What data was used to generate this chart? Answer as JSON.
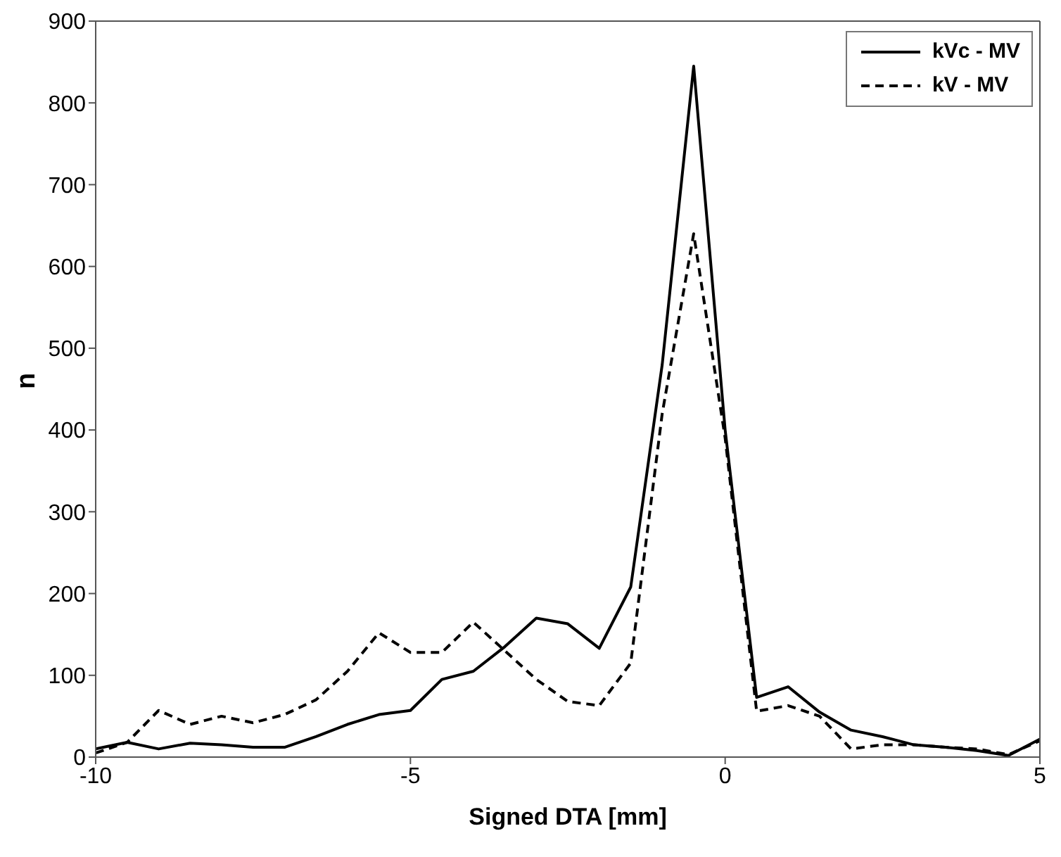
{
  "chart_data": {
    "type": "line",
    "xlabel": "Signed DTA [mm]",
    "ylabel": "n",
    "x": [
      -10,
      -9.5,
      -9,
      -8.5,
      -8,
      -7.5,
      -7,
      -6.5,
      -6,
      -5.5,
      -5,
      -4.5,
      -4,
      -3.5,
      -3,
      -2.5,
      -2,
      -1.5,
      -1,
      -0.5,
      0,
      0.5,
      1,
      1.5,
      2,
      2.5,
      3,
      3.5,
      4,
      4.5,
      5
    ],
    "series": [
      {
        "name": "kVc - MV",
        "color": "#000000",
        "line_style": "solid",
        "values": [
          10,
          18,
          10,
          17,
          15,
          12,
          12,
          25,
          40,
          52,
          57,
          95,
          105,
          135,
          170,
          163,
          133,
          208,
          480,
          845,
          400,
          73,
          86,
          55,
          33,
          25,
          15,
          12,
          8,
          2,
          22
        ]
      },
      {
        "name": "kV - MV",
        "color": "#000000",
        "line_style": "dashed",
        "values": [
          5,
          18,
          57,
          40,
          50,
          42,
          52,
          70,
          105,
          152,
          128,
          128,
          165,
          130,
          95,
          68,
          63,
          115,
          420,
          640,
          390,
          56,
          63,
          50,
          10,
          15,
          15,
          12,
          10,
          3,
          20
        ]
      }
    ],
    "xlim": [
      -10,
      5
    ],
    "xticks": [
      -10,
      -5,
      0,
      5
    ],
    "ylim": [
      0,
      900
    ],
    "yticks": [
      0,
      100,
      200,
      300,
      400,
      500,
      600,
      700,
      800,
      900
    ],
    "legend": "top right",
    "marker": "none"
  }
}
